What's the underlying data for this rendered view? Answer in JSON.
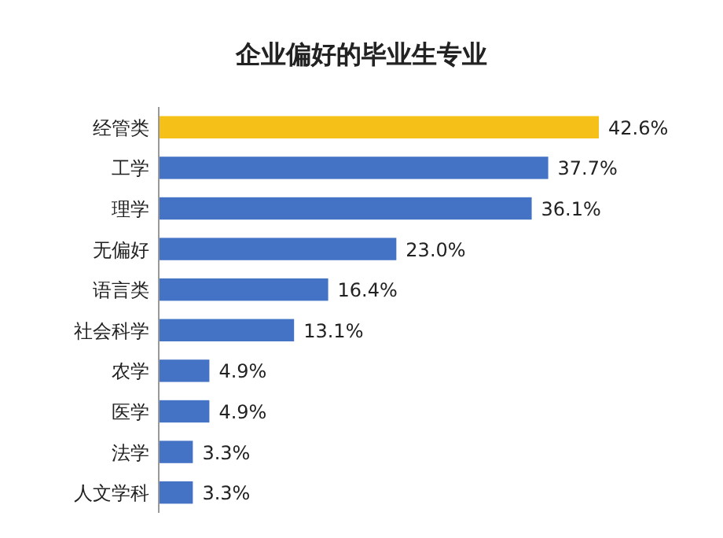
{
  "chart_data": {
    "type": "bar",
    "orientation": "horizontal",
    "title": "企业偏好的毕业生专业",
    "categories": [
      "经管类",
      "工学",
      "理学",
      "无偏好",
      "语言类",
      "社会科学",
      "农学",
      "医学",
      "法学",
      "人文学科"
    ],
    "values": [
      42.6,
      37.7,
      36.1,
      23.0,
      16.4,
      13.1,
      4.9,
      4.9,
      3.3,
      3.3
    ],
    "value_labels": [
      "42.6%",
      "37.7%",
      "36.1%",
      "23.0%",
      "16.4%",
      "13.1%",
      "4.9%",
      "4.9%",
      "3.3%",
      "3.3%"
    ],
    "colors": [
      "#f5c118",
      "#4472c4",
      "#4472c4",
      "#4472c4",
      "#4472c4",
      "#4472c4",
      "#4472c4",
      "#4472c4",
      "#4472c4",
      "#4472c4"
    ]
  }
}
